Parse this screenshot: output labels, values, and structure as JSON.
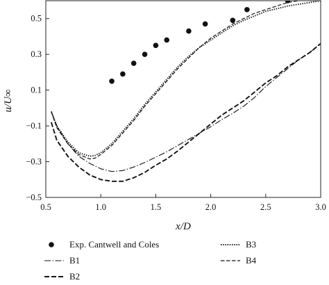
{
  "chart_data": {
    "type": "line",
    "xlabel": "x/D",
    "ylabel": "u/U∞",
    "xlim": [
      0.5,
      3.0
    ],
    "ylim": [
      -0.5,
      0.6
    ],
    "xticks": [
      0.5,
      1.0,
      1.5,
      2.0,
      2.5,
      3.0
    ],
    "xtick_labels": [
      "0.5",
      "1.0",
      "1.5",
      "2.0",
      "2.5",
      "3.0"
    ],
    "yticks": [
      -0.5,
      -0.3,
      -0.1,
      0.1,
      0.3,
      0.5
    ],
    "ytick_labels": [
      "−0.5",
      "−0.3",
      "−0.1",
      "0.1",
      "0.3",
      "0.5"
    ],
    "grid": false,
    "legend_position": "below",
    "series": [
      {
        "name": "Exp. Cantwell and Coles",
        "kind": "markers",
        "x": [
          1.1,
          1.2,
          1.3,
          1.4,
          1.5,
          1.6,
          1.8,
          1.95,
          2.2,
          2.33,
          2.7
        ],
        "y": [
          0.15,
          0.19,
          0.25,
          0.3,
          0.35,
          0.38,
          0.43,
          0.47,
          0.49,
          0.55,
          0.6
        ]
      },
      {
        "name": "B1",
        "kind": "dashdot",
        "x": [
          0.55,
          0.6,
          0.7,
          0.8,
          0.9,
          1.0,
          1.1,
          1.2,
          1.3,
          1.4,
          1.5,
          1.6,
          1.7,
          1.8,
          1.9,
          2.0,
          2.1,
          2.2,
          2.3,
          2.4,
          2.5,
          2.6,
          2.7,
          2.8,
          2.9,
          3.0
        ],
        "y": [
          -0.02,
          -0.1,
          -0.2,
          -0.27,
          -0.31,
          -0.34,
          -0.355,
          -0.35,
          -0.33,
          -0.305,
          -0.275,
          -0.245,
          -0.21,
          -0.175,
          -0.14,
          -0.105,
          -0.065,
          -0.03,
          0.01,
          0.06,
          0.12,
          0.17,
          0.22,
          0.27,
          0.31,
          0.36
        ]
      },
      {
        "name": "B2",
        "kind": "dashed",
        "x": [
          0.55,
          0.6,
          0.7,
          0.8,
          0.9,
          1.0,
          1.1,
          1.2,
          1.3,
          1.4,
          1.5,
          1.6,
          1.7,
          1.8,
          1.9,
          2.0,
          2.1,
          2.2,
          2.3,
          2.4,
          2.5,
          2.6,
          2.7,
          2.8,
          2.9,
          3.0
        ],
        "y": [
          -0.08,
          -0.18,
          -0.27,
          -0.33,
          -0.375,
          -0.4,
          -0.41,
          -0.41,
          -0.39,
          -0.36,
          -0.32,
          -0.285,
          -0.24,
          -0.19,
          -0.14,
          -0.09,
          -0.04,
          0.0,
          0.04,
          0.09,
          0.14,
          0.18,
          0.23,
          0.27,
          0.31,
          0.36
        ]
      },
      {
        "name": "B3",
        "kind": "dotted",
        "x": [
          0.55,
          0.6,
          0.7,
          0.8,
          0.9,
          0.95,
          1.0,
          1.1,
          1.2,
          1.3,
          1.4,
          1.5,
          1.6,
          1.7,
          1.8,
          1.9,
          2.0,
          2.1,
          2.2,
          2.3,
          2.4,
          2.5,
          2.6,
          2.7,
          2.8,
          2.9,
          3.0
        ],
        "y": [
          -0.02,
          -0.1,
          -0.19,
          -0.25,
          -0.27,
          -0.265,
          -0.25,
          -0.2,
          -0.13,
          -0.06,
          0.02,
          0.09,
          0.16,
          0.23,
          0.29,
          0.34,
          0.38,
          0.42,
          0.46,
          0.49,
          0.515,
          0.54,
          0.555,
          0.57,
          0.58,
          0.59,
          0.6
        ]
      },
      {
        "name": "B4",
        "kind": "longdash",
        "x": [
          0.55,
          0.6,
          0.7,
          0.8,
          0.9,
          0.95,
          1.0,
          1.1,
          1.2,
          1.3,
          1.4,
          1.5,
          1.6,
          1.7,
          1.8,
          1.9,
          2.0,
          2.1,
          2.2,
          2.3,
          2.4,
          2.5,
          2.6,
          2.7,
          2.8,
          2.9,
          3.0
        ],
        "y": [
          -0.02,
          -0.11,
          -0.2,
          -0.26,
          -0.285,
          -0.28,
          -0.26,
          -0.21,
          -0.14,
          -0.07,
          0.01,
          0.08,
          0.15,
          0.22,
          0.28,
          0.34,
          0.39,
          0.43,
          0.47,
          0.5,
          0.53,
          0.55,
          0.57,
          0.59,
          0.6,
          0.61,
          0.62
        ]
      }
    ]
  }
}
